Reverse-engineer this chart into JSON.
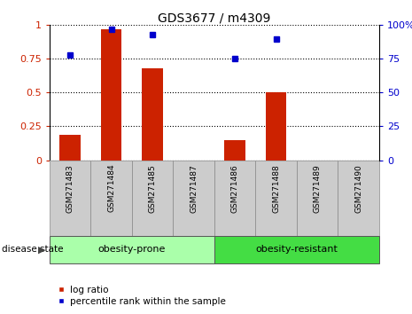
{
  "title": "GDS3677 / m4309",
  "categories": [
    "GSM271483",
    "GSM271484",
    "GSM271485",
    "GSM271487",
    "GSM271486",
    "GSM271488",
    "GSM271489",
    "GSM271490"
  ],
  "log_ratio": [
    0.19,
    0.97,
    0.68,
    0.0,
    0.15,
    0.5,
    0.0,
    0.0
  ],
  "percentile_rank": [
    0.78,
    0.97,
    0.93,
    null,
    0.75,
    0.9,
    null,
    null
  ],
  "groups": [
    {
      "label": "obesity-prone",
      "start": 0,
      "end": 4,
      "color": "#aaffaa"
    },
    {
      "label": "obesity-resistant",
      "start": 4,
      "end": 8,
      "color": "#44dd44"
    }
  ],
  "group_label_prefix": "disease state",
  "bar_color": "#CC2200",
  "dot_color": "#0000CC",
  "yticks_left": [
    0,
    0.25,
    0.5,
    0.75,
    1.0
  ],
  "yticks_right": [
    0,
    25,
    50,
    75,
    100
  ],
  "ylim": [
    0,
    1.0
  ],
  "legend_items": [
    {
      "label": "log ratio",
      "color": "#CC2200"
    },
    {
      "label": "percentile rank within the sample",
      "color": "#0000CC"
    }
  ],
  "background_color": "#ffffff",
  "tick_area_bg": "#cccccc"
}
